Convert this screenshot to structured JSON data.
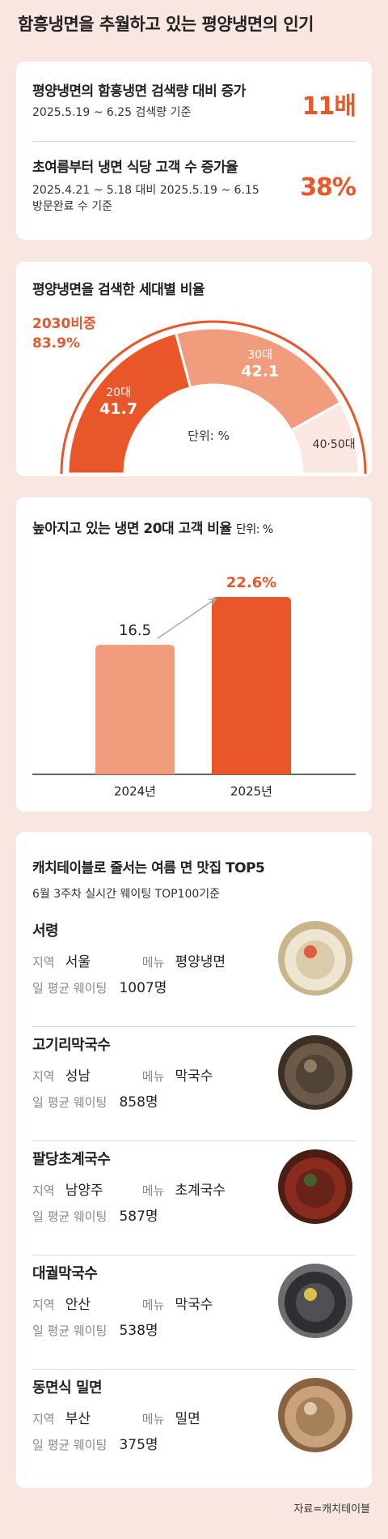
{
  "title": "함흥냉면을 추월하고 있는 평양냉면의 인기",
  "stats": [
    {
      "heading": "평양냉면의 함흥냉면 검색량 대비 증가",
      "sub": "2025.5.19 ~ 6.25 검색량 기준",
      "sub2": "",
      "value": "11배"
    },
    {
      "heading": "초여름부터 냉면 식당 고객 수 증가율",
      "sub": "2025.4.21 ~ 5.18 대비 2025.5.19 ~ 6.15",
      "sub2": "방문완료 수 기준",
      "value": "38%"
    }
  ],
  "age_chart": {
    "title": "평양냉면을 검색한 세대별 비율",
    "highlight_label": "2030비중",
    "highlight_value": "83.9%",
    "unit_label": "단위: %",
    "colors": {
      "twenties": "#e8562a",
      "thirties": "#f19c7d",
      "older": "#fbe7e1",
      "outline": "#e8562a"
    }
  },
  "chart_data": [
    {
      "type": "pie",
      "title": "평양냉면을 검색한 세대별 비율",
      "categories": [
        "20대",
        "30대",
        "40·50대"
      ],
      "values": [
        41.7,
        42.1,
        16.2
      ],
      "labels": [
        "41.7",
        "42.1",
        ""
      ],
      "annotations": [
        "2030비중 83.9%"
      ],
      "unit": "단위: %"
    },
    {
      "type": "bar",
      "title": "높아지고 있는 냉면 20대 고객 비율",
      "unit": "단위: %",
      "categories": [
        "2024년",
        "2025년"
      ],
      "values": [
        16.5,
        22.6
      ],
      "value_labels": [
        "16.5",
        "22.6%"
      ],
      "ylim": [
        0,
        26
      ],
      "colors": [
        "#f19c7d",
        "#e8562a"
      ]
    }
  ],
  "bar_chart": {
    "title": "높아지고 있는 냉면 20대 고객 비율",
    "unit": "단위: %"
  },
  "top5": {
    "title": "캐치테이블로 줄서는 여름 면 맛집 TOP5",
    "subtitle": "6월 3주차 실시간 웨이팅 TOP100기준",
    "region_label": "지역",
    "menu_label": "메뉴",
    "wait_label": "일 평균 웨이팅",
    "items": [
      {
        "name": "서령",
        "region": "서울",
        "menu": "평양냉면",
        "wait": "1007명"
      },
      {
        "name": "고기리막국수",
        "region": "성남",
        "menu": "막국수",
        "wait": "858명"
      },
      {
        "name": "팔당초계국수",
        "region": "남양주",
        "menu": "초계국수",
        "wait": "587명"
      },
      {
        "name": "대궐막국수",
        "region": "안산",
        "menu": "막국수",
        "wait": "538명"
      },
      {
        "name": "동면식 밀면",
        "region": "부산",
        "menu": "밀면",
        "wait": "375명"
      }
    ]
  },
  "source": "자료=캐치테이블"
}
